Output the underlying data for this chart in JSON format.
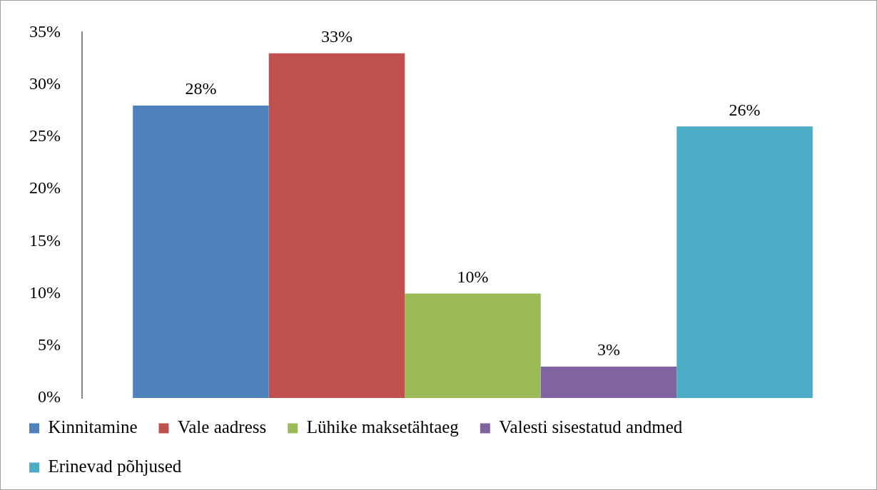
{
  "chart_data": {
    "type": "bar",
    "categories": [
      null
    ],
    "series": [
      {
        "name": "Kinnitamine",
        "color": "#4f81bd",
        "values": [
          28
        ],
        "value_labels": [
          "28%"
        ]
      },
      {
        "name": "Vale aadress",
        "color": "#c0504d",
        "values": [
          33
        ],
        "value_labels": [
          "33%"
        ]
      },
      {
        "name": "Lühike maksetähtaeg",
        "color": "#9bbb59",
        "values": [
          10
        ],
        "value_labels": [
          "10%"
        ]
      },
      {
        "name": "Valesti sisestatud andmed",
        "color": "#8064a2",
        "values": [
          3
        ],
        "value_labels": [
          "3%"
        ]
      },
      {
        "name": "Erinevad põhjused",
        "color": "#4bacc6",
        "values": [
          26
        ],
        "value_labels": [
          "26%"
        ]
      }
    ],
    "ylim": [
      0,
      35
    ],
    "yticks": [
      {
        "value": 0,
        "label": "0%"
      },
      {
        "value": 5,
        "label": "5%"
      },
      {
        "value": 10,
        "label": "10%"
      },
      {
        "value": 15,
        "label": "15%"
      },
      {
        "value": 20,
        "label": "20%"
      },
      {
        "value": 25,
        "label": "25%"
      },
      {
        "value": 30,
        "label": "30%"
      },
      {
        "value": 35,
        "label": "35%"
      }
    ],
    "grid": false,
    "legend": "bottom"
  }
}
